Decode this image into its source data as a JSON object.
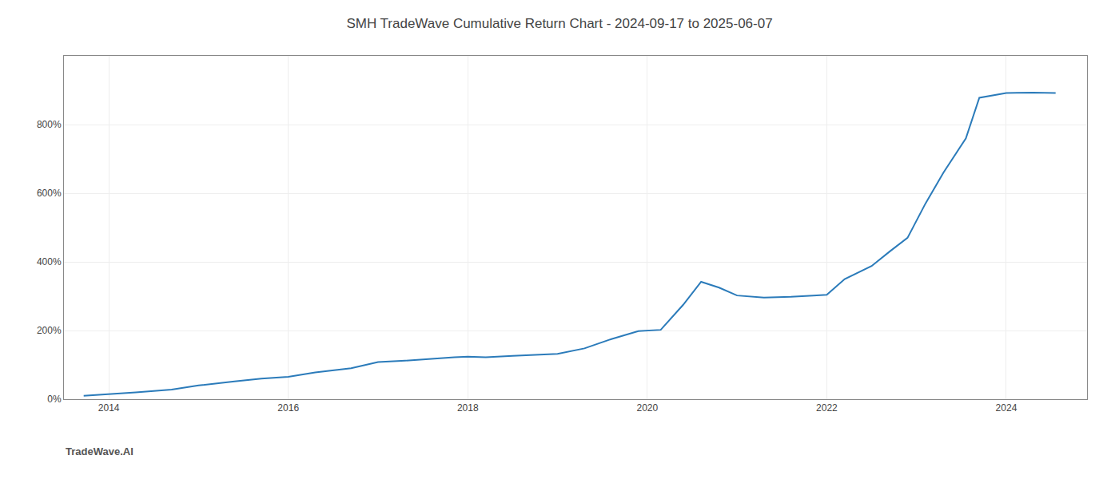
{
  "chart_data": {
    "type": "line",
    "title": "SMH TradeWave Cumulative Return Chart - 2024-09-17 to 2025-06-07",
    "annotations": [
      "TradeWave.AI"
    ],
    "x": [
      2013.72,
      2014.0,
      2014.3,
      2014.7,
      2015.0,
      2015.4,
      2015.7,
      2016.0,
      2016.3,
      2016.7,
      2017.0,
      2017.3,
      2017.6,
      2017.85,
      2018.0,
      2018.2,
      2018.5,
      2018.7,
      2019.0,
      2019.3,
      2019.6,
      2019.9,
      2020.15,
      2020.4,
      2020.6,
      2020.8,
      2021.0,
      2021.3,
      2021.6,
      2021.85,
      2022.0,
      2022.2,
      2022.5,
      2022.7,
      2022.9,
      2023.1,
      2023.3,
      2023.55,
      2023.7,
      2024.0,
      2024.3,
      2024.55
    ],
    "values": [
      10,
      14,
      20,
      28,
      40,
      52,
      60,
      65,
      78,
      90,
      108,
      112,
      118,
      122,
      124,
      122,
      126,
      128,
      132,
      148,
      175,
      198,
      202,
      275,
      342,
      325,
      302,
      296,
      298,
      302,
      304,
      350,
      388,
      430,
      470,
      570,
      660,
      760,
      878,
      892,
      893,
      892
    ],
    "color": "#2b7bba",
    "xlim": [
      2013.5,
      2024.9
    ],
    "xticks": [
      2014,
      2016,
      2018,
      2020,
      2022,
      2024
    ],
    "ylim": [
      0,
      1000
    ],
    "yticks": [
      {
        "value": 0,
        "label": "0%"
      },
      {
        "value": 200,
        "label": "200%"
      },
      {
        "value": 400,
        "label": "400%"
      },
      {
        "value": 600,
        "label": "600%"
      },
      {
        "value": 800,
        "label": "800%"
      }
    ],
    "grid": true
  }
}
